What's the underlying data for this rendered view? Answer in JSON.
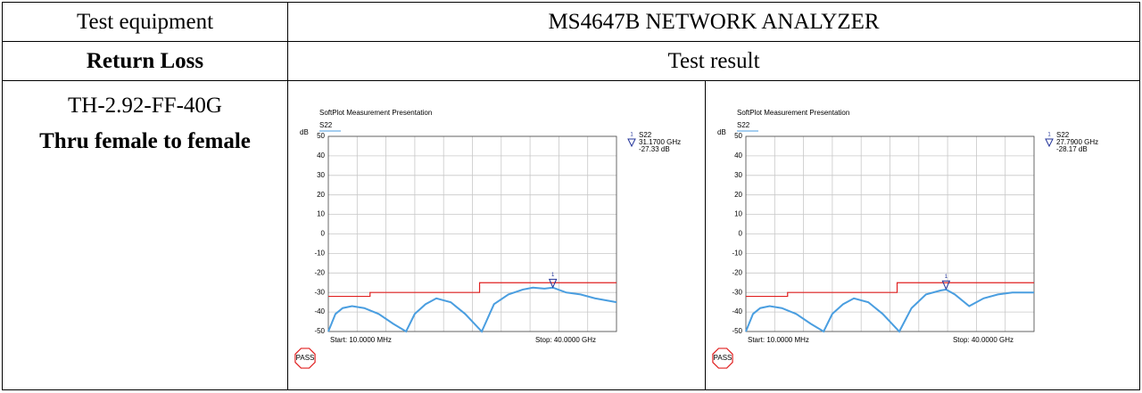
{
  "table": {
    "rows": [
      [
        "Test equipment",
        "MS4647B NETWORK ANALYZER"
      ],
      [
        "Return Loss",
        "Test result"
      ],
      [
        "TH-2.92-FF-40G",
        "Thru female to female"
      ]
    ]
  },
  "charts": [
    {
      "type": "line",
      "title": "SoftPlot Measurement Presentation",
      "y_unit": "dB",
      "ylim": [
        -50,
        50
      ],
      "yticks": [
        50,
        40,
        30,
        20,
        10,
        0,
        -10,
        -20,
        -30,
        -40,
        -50
      ],
      "xlim": [
        0.01,
        40
      ],
      "trace": {
        "name": "S22",
        "color": "#4a9ee0",
        "x": [
          0.01,
          1,
          2,
          3.3,
          5,
          7,
          9,
          10.8,
          12,
          13.5,
          15,
          17,
          19,
          21.3,
          23,
          25,
          27,
          28.4,
          30,
          31.17,
          33,
          35,
          37,
          40
        ],
        "values": [
          -50,
          -41,
          -38,
          -37,
          -38,
          -41,
          -46,
          -50,
          -41,
          -36,
          -33,
          -35,
          -41,
          -50,
          -36,
          -31,
          -28.5,
          -27.5,
          -28,
          -27.5,
          -30,
          -31,
          -33,
          -35
        ]
      },
      "limit": {
        "color": "#e02020",
        "x": [
          0.01,
          5.8,
          5.8,
          21,
          21,
          40
        ],
        "values": [
          -32,
          -32,
          -30,
          -30,
          -25,
          -25
        ]
      },
      "marker": {
        "number": "1",
        "trace": "S22",
        "x": 31.17,
        "x_label": "31.1700 GHz",
        "y": -27.33,
        "y_label": "-27.33 dB"
      },
      "start_label": "Start: 10.0000 MHz",
      "stop_label": "Stop: 40.0000 GHz",
      "status": "PASS"
    },
    {
      "type": "line",
      "title": "SoftPlot Measurement Presentation",
      "y_unit": "dB",
      "ylim": [
        -50,
        50
      ],
      "yticks": [
        50,
        40,
        30,
        20,
        10,
        0,
        -10,
        -20,
        -30,
        -40,
        -50
      ],
      "xlim": [
        0.01,
        40
      ],
      "trace": {
        "name": "S22",
        "color": "#4a9ee0",
        "x": [
          0.01,
          1,
          2,
          3.3,
          5,
          7,
          9,
          10.8,
          12,
          13.5,
          15,
          17,
          19,
          21.3,
          23,
          25,
          27,
          27.79,
          29,
          31,
          33,
          35,
          37,
          40
        ],
        "values": [
          -50,
          -41,
          -38,
          -37,
          -38,
          -41,
          -46,
          -50,
          -41,
          -36,
          -33,
          -35,
          -41,
          -50,
          -38,
          -31,
          -29,
          -28.5,
          -31,
          -37,
          -33,
          -31,
          -30,
          -30
        ]
      },
      "limit": {
        "color": "#e02020",
        "x": [
          0.01,
          5.8,
          5.8,
          21,
          21,
          40
        ],
        "values": [
          -32,
          -32,
          -30,
          -30,
          -25,
          -25
        ]
      },
      "marker": {
        "number": "1",
        "trace": "S22",
        "x": 27.79,
        "x_label": "27.7900 GHz",
        "y": -28.17,
        "y_label": "-28.17 dB"
      },
      "start_label": "Start: 10.0000 MHz",
      "stop_label": "Stop: 40.0000 GHz",
      "status": "PASS"
    }
  ]
}
